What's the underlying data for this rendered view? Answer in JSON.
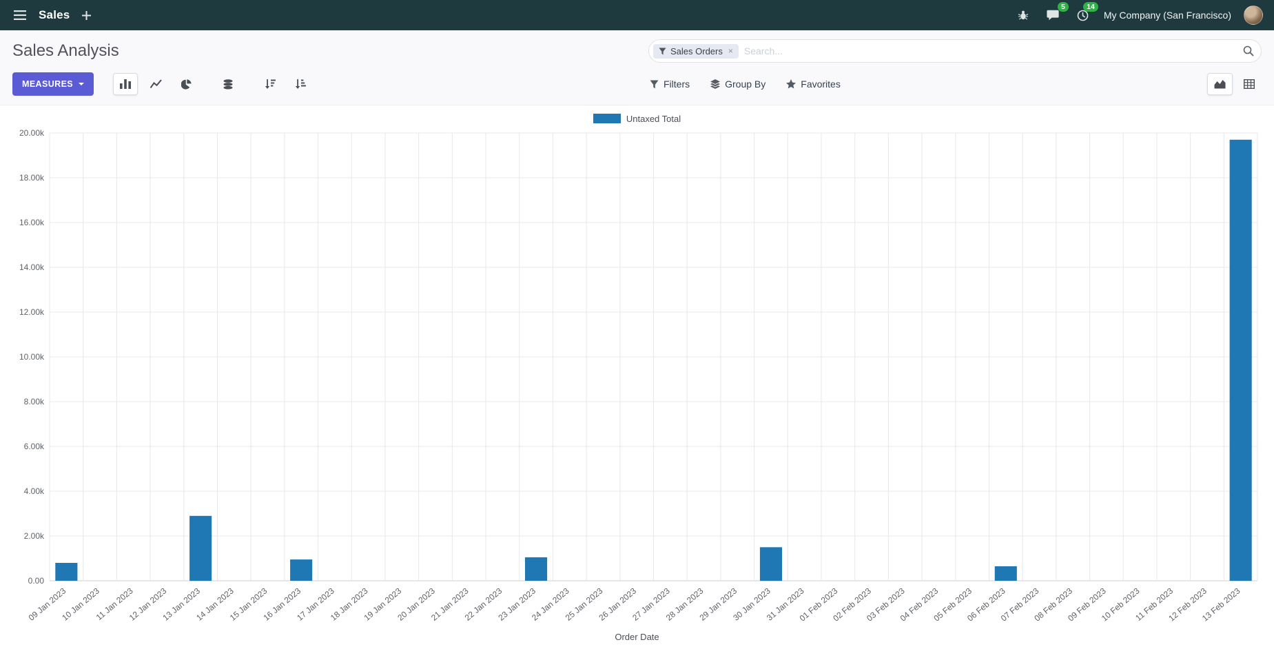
{
  "navbar": {
    "app_name": "Sales",
    "chat_badge": "5",
    "activity_badge": "14",
    "company": "My Company (San Francisco)"
  },
  "control_panel": {
    "title": "Sales Analysis",
    "measures_label": "MEASURES",
    "filters_label": "Filters",
    "group_by_label": "Group By",
    "favorites_label": "Favorites",
    "search": {
      "facet": "Sales Orders",
      "facet_remove": "×",
      "placeholder": "Search..."
    }
  },
  "colors": {
    "navbar_bg": "#1e3a3e",
    "primary_button": "#5b5bd6",
    "badge_green": "#2fb344",
    "bar_blue": "#1f77b4",
    "grid_line": "#e8e8e8"
  },
  "icons": {
    "menu": "hamburger",
    "add": "plus",
    "bug": "bug",
    "messages": "speech-bubble",
    "activities": "clock",
    "search": "magnifier",
    "filter": "funnel",
    "group_by": "layers",
    "favorites": "star",
    "bar_chart": "bars",
    "line_chart": "line",
    "pie_chart": "pie",
    "stacked": "database",
    "sort_desc": "arrow-bars-desc",
    "sort_asc": "arrow-bars-asc",
    "graph_view": "area-chart",
    "pivot_view": "grid"
  },
  "chart_data": {
    "type": "bar",
    "title": "",
    "legend": [
      "Untaxed Total"
    ],
    "series_color": "#1f77b4",
    "series": [
      {
        "name": "Untaxed Total",
        "values": [
          800,
          0,
          0,
          0,
          2900,
          0,
          0,
          950,
          0,
          0,
          0,
          0,
          0,
          0,
          1050,
          0,
          0,
          0,
          0,
          0,
          0,
          1500,
          0,
          0,
          0,
          0,
          0,
          0,
          650,
          0,
          0,
          0,
          0,
          0,
          0,
          19700
        ]
      }
    ],
    "categories": [
      "09 Jan 2023",
      "10 Jan 2023",
      "11 Jan 2023",
      "12 Jan 2023",
      "13 Jan 2023",
      "14 Jan 2023",
      "15 Jan 2023",
      "16 Jan 2023",
      "17 Jan 2023",
      "18 Jan 2023",
      "19 Jan 2023",
      "20 Jan 2023",
      "21 Jan 2023",
      "22 Jan 2023",
      "23 Jan 2023",
      "24 Jan 2023",
      "25 Jan 2023",
      "26 Jan 2023",
      "27 Jan 2023",
      "28 Jan 2023",
      "29 Jan 2023",
      "30 Jan 2023",
      "31 Jan 2023",
      "01 Feb 2023",
      "02 Feb 2023",
      "03 Feb 2023",
      "04 Feb 2023",
      "05 Feb 2023",
      "06 Feb 2023",
      "07 Feb 2023",
      "08 Feb 2023",
      "09 Feb 2023",
      "10 Feb 2023",
      "11 Feb 2023",
      "12 Feb 2023",
      "13 Feb 2023"
    ],
    "xlabel": "Order Date",
    "ylabel": "",
    "ylim": [
      0,
      20000
    ],
    "ytick_step": 2000,
    "ytick_labels": [
      "0.00",
      "2.00k",
      "4.00k",
      "6.00k",
      "8.00k",
      "10.00k",
      "12.00k",
      "14.00k",
      "16.00k",
      "18.00k",
      "20.00k"
    ],
    "grid": true,
    "legend_position": "top-center"
  }
}
